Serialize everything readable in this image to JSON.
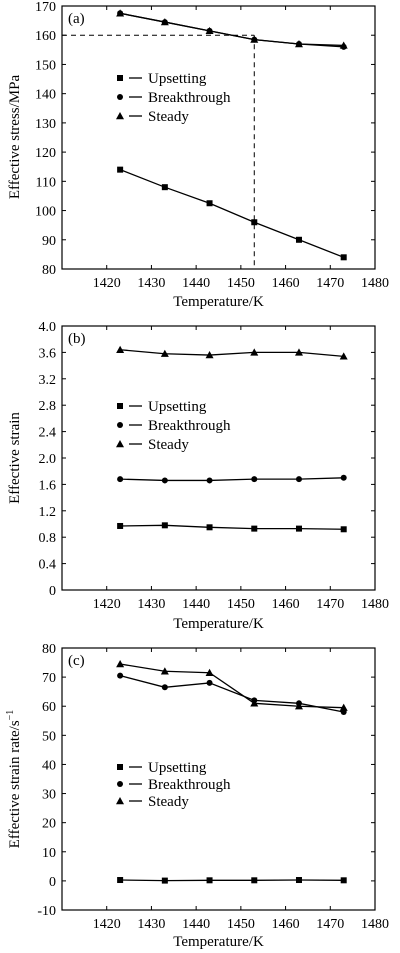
{
  "chart_data": [
    {
      "panel_label": "(a)",
      "type": "line",
      "xlabel": "Temperature/K",
      "ylabel": "Effective stress/MPa",
      "xlim": [
        1410,
        1480
      ],
      "ylim": [
        80,
        170
      ],
      "x_ticks": [
        1420,
        1430,
        1440,
        1450,
        1460,
        1470,
        1480
      ],
      "y_ticks": [
        80,
        90,
        100,
        110,
        120,
        130,
        140,
        150,
        160,
        170
      ],
      "x": [
        1423,
        1433,
        1443,
        1453,
        1463,
        1473
      ],
      "series": [
        {
          "name": "Upsetting",
          "marker": "square",
          "values": [
            114,
            108,
            102.5,
            96,
            90,
            84
          ]
        },
        {
          "name": "Breakthrough",
          "marker": "circle",
          "values": [
            167.5,
            164.5,
            161.5,
            158.5,
            157,
            156
          ]
        },
        {
          "name": "Steady",
          "marker": "triangle",
          "values": [
            167.5,
            164.5,
            161.5,
            158.5,
            157,
            156.5
          ]
        }
      ],
      "reference_lines": {
        "x": 1453,
        "y": 160
      },
      "legend_position": "center-left",
      "grid": false
    },
    {
      "panel_label": "(b)",
      "type": "line",
      "xlabel": "Temperature/K",
      "ylabel": "Effective strain",
      "xlim": [
        1410,
        1480
      ],
      "ylim": [
        0,
        4.0
      ],
      "x_ticks": [
        1420,
        1430,
        1440,
        1450,
        1460,
        1470,
        1480
      ],
      "y_ticks": [
        0,
        0.4,
        0.8,
        1.2,
        1.6,
        2.0,
        2.4,
        2.8,
        3.2,
        3.6,
        4.0
      ],
      "y_tick_labels": [
        "0",
        "0.4",
        "0.8",
        "1.2",
        "1.6",
        "2.0",
        "2.4",
        "2.8",
        "3.2",
        "3.6",
        "4.0"
      ],
      "x": [
        1423,
        1433,
        1443,
        1453,
        1463,
        1473
      ],
      "series": [
        {
          "name": "Upsetting",
          "marker": "square",
          "values": [
            0.97,
            0.98,
            0.95,
            0.93,
            0.93,
            0.92
          ]
        },
        {
          "name": "Breakthrough",
          "marker": "circle",
          "values": [
            1.68,
            1.66,
            1.66,
            1.68,
            1.68,
            1.7
          ]
        },
        {
          "name": "Steady",
          "marker": "triangle",
          "values": [
            3.64,
            3.58,
            3.56,
            3.6,
            3.6,
            3.54
          ]
        }
      ],
      "legend_position": "center-left",
      "grid": false
    },
    {
      "panel_label": "(c)",
      "type": "line",
      "xlabel": "Temperature/K",
      "ylabel": "Effective strain rate/s",
      "ylabel_superscript": "−1",
      "xlim": [
        1410,
        1480
      ],
      "ylim": [
        -10,
        80
      ],
      "x_ticks": [
        1420,
        1430,
        1440,
        1450,
        1460,
        1470,
        1480
      ],
      "y_ticks": [
        -10,
        0,
        10,
        20,
        30,
        40,
        50,
        60,
        70,
        80
      ],
      "x": [
        1423,
        1433,
        1443,
        1453,
        1463,
        1473
      ],
      "series": [
        {
          "name": "Upsetting",
          "marker": "square",
          "values": [
            0.3,
            0.1,
            0.2,
            0.2,
            0.3,
            0.2
          ]
        },
        {
          "name": "Breakthrough",
          "marker": "circle",
          "values": [
            70.5,
            66.5,
            68,
            62,
            61,
            58
          ]
        },
        {
          "name": "Steady",
          "marker": "triangle",
          "values": [
            74.5,
            72,
            71.5,
            61,
            60,
            59.5
          ]
        }
      ],
      "legend_position": "center-left",
      "grid": false
    }
  ]
}
